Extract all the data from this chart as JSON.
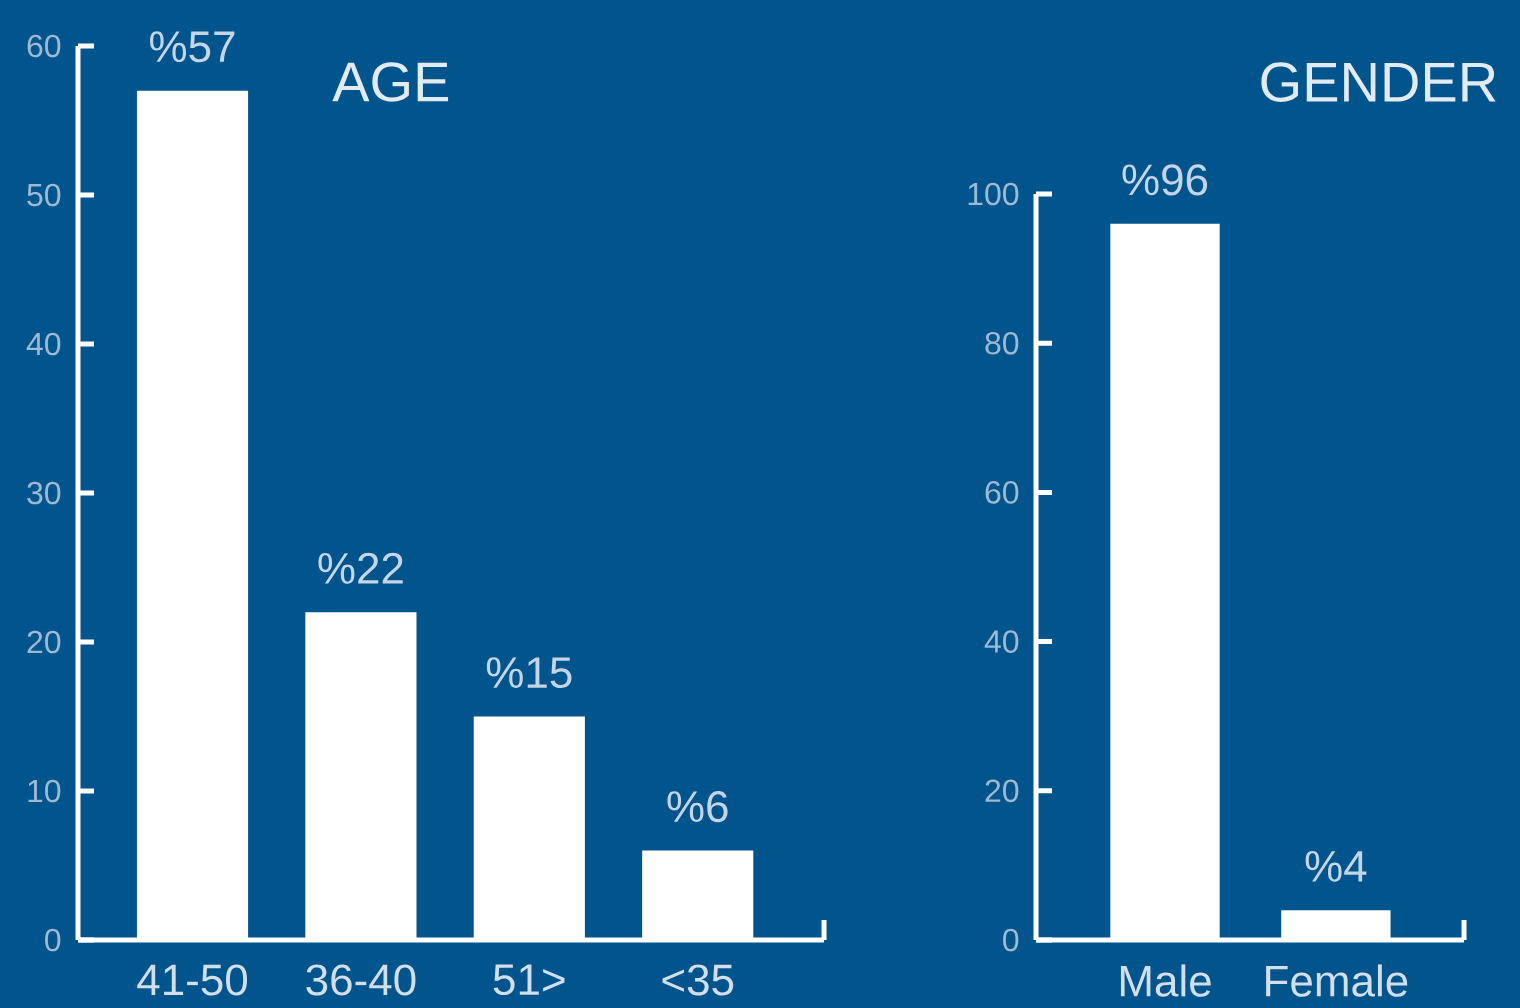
{
  "chart_data": [
    {
      "type": "bar",
      "title": "AGE",
      "categories": [
        "41-50",
        "36-40",
        "51>",
        "<35"
      ],
      "values": [
        57,
        22,
        15,
        6
      ],
      "value_labels": [
        "%57",
        "%22",
        "%15",
        "%6"
      ],
      "color": "#ffffff",
      "ylim": [
        0,
        60
      ],
      "yticks": [
        0,
        10,
        20,
        30,
        40,
        50,
        60
      ]
    },
    {
      "type": "bar",
      "title": "GENDER",
      "categories": [
        "Male",
        "Female"
      ],
      "values": [
        96,
        4
      ],
      "value_labels": [
        "%96",
        "%4"
      ],
      "color": "#ffffff",
      "ylim": [
        0,
        100
      ],
      "yticks": [
        0,
        20,
        40,
        60,
        80,
        100
      ]
    }
  ]
}
